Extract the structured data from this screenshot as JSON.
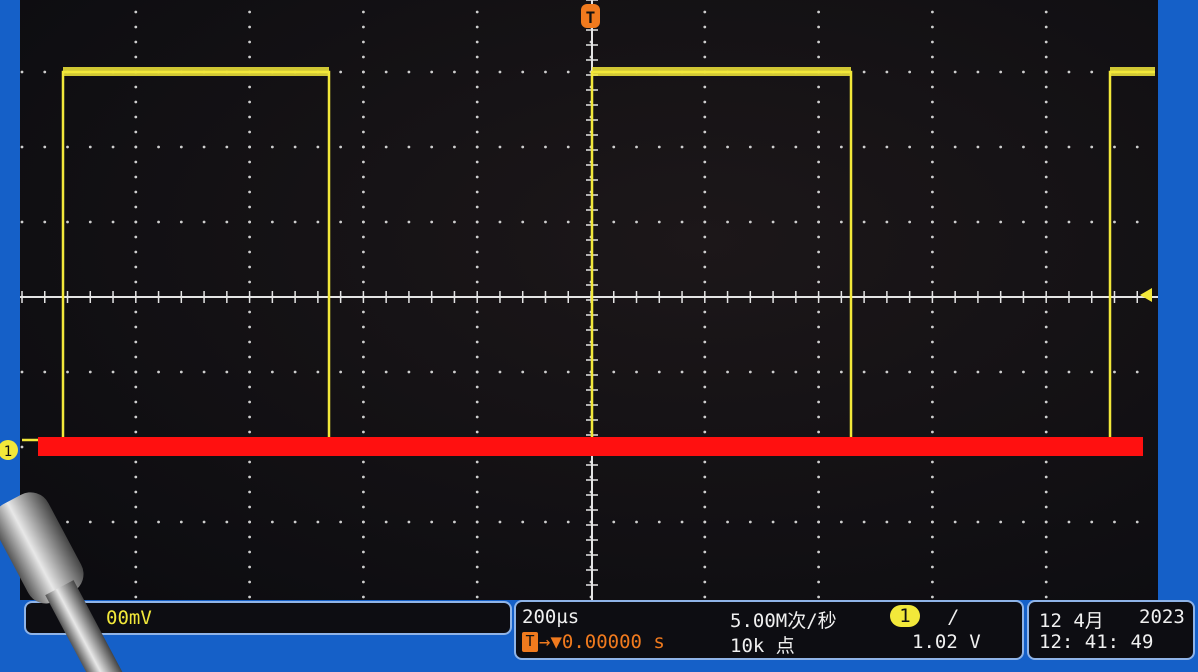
{
  "screen": {
    "trigger_marker": "T",
    "channel_marker": "1",
    "colors": {
      "trace": "#f2e83a",
      "background": "#111114",
      "grid": "#d8d8d8",
      "trigger": "#f07a1e",
      "overlay_bar": "#ff1010",
      "bezel": "#1560c8"
    }
  },
  "channel_panel": {
    "scale": "00mV"
  },
  "timebase_panel": {
    "time_per_div": "200µs",
    "sample_rate": "5.00M次/秒",
    "trigger_position_icon": "T",
    "trigger_offset": "→▼0.00000 s",
    "record_length": "10k 点",
    "trigger_source": "1",
    "trigger_slope": "/",
    "trigger_level": "1.02 V"
  },
  "datetime_panel": {
    "date": "12 4月",
    "year": "2023",
    "time": "12: 41: 49"
  }
}
